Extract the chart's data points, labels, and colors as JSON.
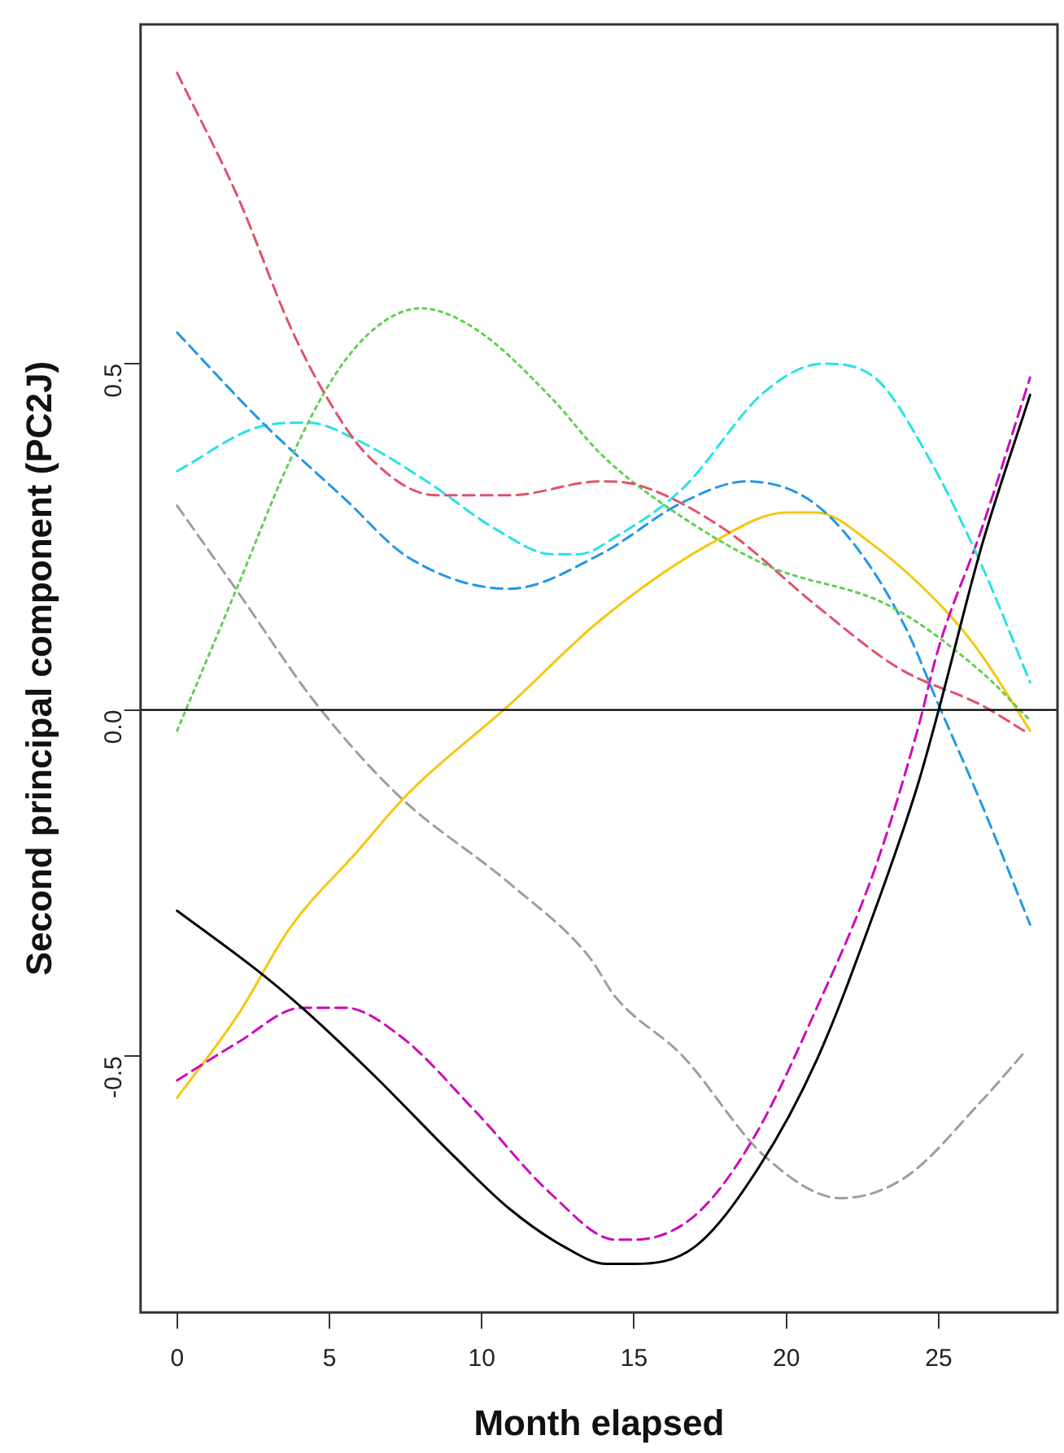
{
  "chart_data": {
    "type": "line",
    "xlabel": "Month elapsed",
    "ylabel": "Second principal component (PC2J)",
    "xlim": [
      -1.2,
      28.9
    ],
    "ylim": [
      -0.87,
      0.99
    ],
    "xticks": [
      0,
      5,
      10,
      15,
      20,
      25
    ],
    "yticks": [
      {
        "value": -0.5,
        "label": "-0.5"
      },
      {
        "value": 0,
        "label": "0.0"
      },
      {
        "value": 0.5,
        "label": "0.5"
      }
    ],
    "grid": false,
    "legend": false,
    "marker": "none",
    "ref_lines": [
      {
        "axis": "y",
        "value": 0,
        "color": "#000000",
        "line_style": "solid"
      }
    ],
    "series": [
      {
        "color": "#000000",
        "line_style": "solid",
        "x": [
          0,
          2.6,
          4.1,
          6.4,
          9.1,
          10.9,
          12.7,
          14.1,
          15,
          17,
          19.1,
          21,
          22.9,
          24.3,
          25,
          26.4,
          28
        ],
        "values": [
          -0.29,
          -0.375,
          -0.43,
          -0.525,
          -0.645,
          -0.72,
          -0.775,
          -0.8,
          -0.8,
          -0.775,
          -0.66,
          -0.505,
          -0.29,
          -0.11,
          0,
          0.235,
          0.455
        ]
      },
      {
        "color": "#df536b",
        "line_style": "dashed",
        "x": [
          0,
          2,
          3.7,
          4.8,
          6.2,
          8.5,
          10.9,
          13.9,
          15.1,
          18,
          21,
          23.7,
          26.4,
          27.8
        ],
        "values": [
          0.92,
          0.74,
          0.555,
          0.46,
          0.37,
          0.31,
          0.31,
          0.33,
          0.325,
          0.26,
          0.15,
          0.06,
          0.007,
          -0.03
        ]
      },
      {
        "color": "#61d04f",
        "line_style": "dotted",
        "x": [
          0,
          2,
          3.7,
          5.2,
          6.6,
          8,
          9.8,
          12.3,
          13.9,
          15.7,
          19.3,
          23.4,
          26.4,
          28
        ],
        "values": [
          -0.03,
          0.18,
          0.36,
          0.485,
          0.555,
          0.58,
          0.55,
          0.45,
          0.37,
          0.305,
          0.21,
          0.15,
          0.055,
          -0.015
        ]
      },
      {
        "color": "#2297e6",
        "line_style": "dashed",
        "x": [
          0,
          2.8,
          5.5,
          7.6,
          10.9,
          13.9,
          16.6,
          18.7,
          20.7,
          22.3,
          23.9,
          25,
          26.4,
          28
        ],
        "values": [
          0.545,
          0.415,
          0.305,
          0.22,
          0.175,
          0.225,
          0.3,
          0.33,
          0.305,
          0.235,
          0.12,
          0.007,
          -0.135,
          -0.31
        ]
      },
      {
        "color": "#28e2e5",
        "line_style": "dashed",
        "x": [
          0,
          2.8,
          4.3,
          5.9,
          8.2,
          10.5,
          12.3,
          13.2,
          14.4,
          16.6,
          19.3,
          21.2,
          22.9,
          24.6,
          26.4,
          28
        ],
        "values": [
          0.345,
          0.41,
          0.415,
          0.39,
          0.33,
          0.26,
          0.225,
          0.225,
          0.25,
          0.32,
          0.46,
          0.5,
          0.48,
          0.37,
          0.21,
          0.04
        ]
      },
      {
        "color": "#cd0bbc",
        "line_style": "dashed",
        "x": [
          0,
          2,
          4.1,
          5.5,
          7.3,
          9.8,
          12.3,
          14.4,
          15,
          17,
          18.9,
          21,
          22.9,
          24.3,
          25,
          26.4,
          28
        ],
        "values": [
          -0.535,
          -0.48,
          -0.43,
          -0.43,
          -0.47,
          -0.58,
          -0.7,
          -0.765,
          -0.765,
          -0.73,
          -0.62,
          -0.43,
          -0.23,
          -0.03,
          0.09,
          0.26,
          0.48
        ]
      },
      {
        "color": "#f5c710",
        "line_style": "solid",
        "x": [
          0,
          2,
          3.7,
          5.9,
          7.6,
          10.9,
          13.9,
          17.5,
          20,
          21,
          22.8,
          25.3,
          26.4,
          28
        ],
        "values": [
          -0.56,
          -0.44,
          -0.315,
          -0.205,
          -0.12,
          0.007,
          0.13,
          0.24,
          0.285,
          0.285,
          0.24,
          0.14,
          0.08,
          -0.03
        ]
      },
      {
        "color": "#9e9e9e",
        "line_style": "dashed",
        "x": [
          0,
          2,
          4.6,
          7.3,
          10.9,
          13.5,
          14.4,
          16.6,
          19.3,
          21.8,
          23.9,
          26.4,
          27.8
        ],
        "values": [
          0.295,
          0.17,
          0.007,
          -0.125,
          -0.25,
          -0.355,
          -0.415,
          -0.5,
          -0.645,
          -0.705,
          -0.675,
          -0.565,
          -0.495
        ]
      }
    ]
  }
}
